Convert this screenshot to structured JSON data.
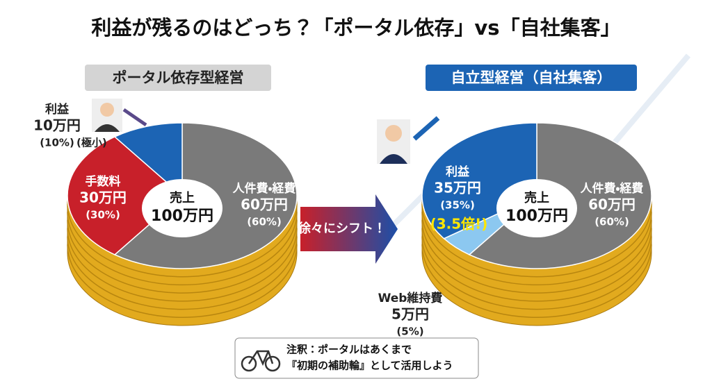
{
  "title": "利益が残るのはどっち？「ポータル依存」vs「自社集客」",
  "arrow_label": "徐々にシフト！",
  "note": {
    "lines": [
      "注釈：ポータルはあくまで",
      "『初期の補助輪』として活用しよう"
    ]
  },
  "chart_data": [
    {
      "type": "pie",
      "title": "ポータル依存型経営",
      "center_label": "売上",
      "total": 100,
      "total_label": "100万円",
      "categories": [
        "人件費・経費",
        "手数料",
        "利益"
      ],
      "values": [
        60,
        30,
        10
      ],
      "value_labels": [
        "(60%)",
        "(30%)",
        "(10%)"
      ],
      "amount_labels": [
        "60万円",
        "30万円",
        "10万円"
      ],
      "colors": [
        "#7a7a7a",
        "#c8202a",
        "#1c64b4"
      ],
      "annotation": "(極小)"
    },
    {
      "type": "pie",
      "title": "自立型経営（自社集客）",
      "center_label": "売上",
      "total": 100,
      "total_label": "100万円",
      "categories": [
        "人件費・経費",
        "Web維持費",
        "利益"
      ],
      "values": [
        60,
        5,
        35
      ],
      "value_labels": [
        "(60%)",
        "(5%)",
        "(35%)"
      ],
      "amount_labels": [
        "60万円",
        "5万円",
        "35万円"
      ],
      "colors": [
        "#7a7a7a",
        "#8cc8f0",
        "#1c64b4"
      ],
      "annotation": "(3.5倍!)"
    }
  ]
}
